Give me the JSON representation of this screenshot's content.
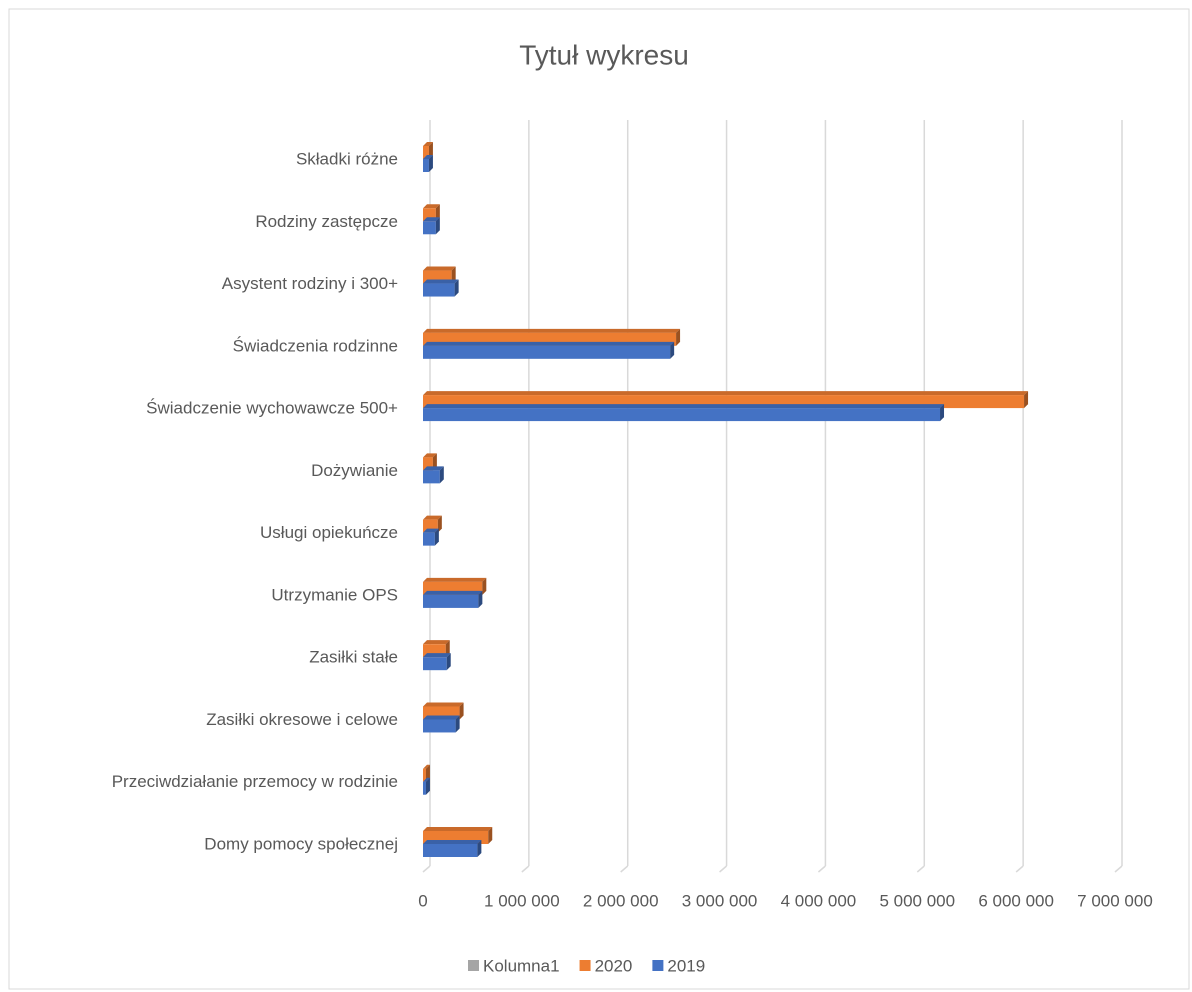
{
  "chart_data": {
    "type": "bar",
    "orientation": "horizontal",
    "title": "Tytuł wykresu",
    "categories": [
      "Składki różne",
      "Rodziny zastępcze",
      "Asystent rodziny i 300+",
      "Świadczenia rodzinne",
      "Świadczenie wychowawcze 500+",
      "Dożywianie",
      "Usługi opiekuńcze",
      "Utrzymanie OPS",
      "Zasiłki stałe",
      "Zasiłki okresowe i celowe",
      "Przeciwdziałanie przemocy w rodzinie",
      "Domy pomocy społecznej"
    ],
    "series": [
      {
        "name": "Kolumna1",
        "color": "#a5a5a5",
        "values": [
          null,
          null,
          null,
          null,
          null,
          null,
          null,
          null,
          null,
          null,
          null,
          null
        ]
      },
      {
        "name": "2020",
        "color": "#ed7d31",
        "values": [
          60000,
          130000,
          290000,
          2560000,
          6080000,
          100000,
          150000,
          600000,
          230000,
          370000,
          30000,
          660000
        ]
      },
      {
        "name": "2019",
        "color": "#4472c4",
        "values": [
          60000,
          130000,
          320000,
          2500000,
          5230000,
          170000,
          120000,
          560000,
          240000,
          330000,
          30000,
          550000
        ]
      }
    ],
    "xlim": [
      0,
      7000000
    ],
    "xticks": [
      0,
      {
        "value": 1000000,
        "label": "1 000 000"
      },
      {
        "value": 2000000,
        "label": "2 000 000"
      },
      {
        "value": 3000000,
        "label": "3 000 000"
      },
      {
        "value": 4000000,
        "label": "4 000 000"
      },
      {
        "value": 5000000,
        "label": "5 000 000"
      },
      {
        "value": 6000000,
        "label": "6 000 000"
      },
      {
        "value": 7000000,
        "label": "7 000 000"
      }
    ],
    "grid": true,
    "legend": "bottom"
  }
}
